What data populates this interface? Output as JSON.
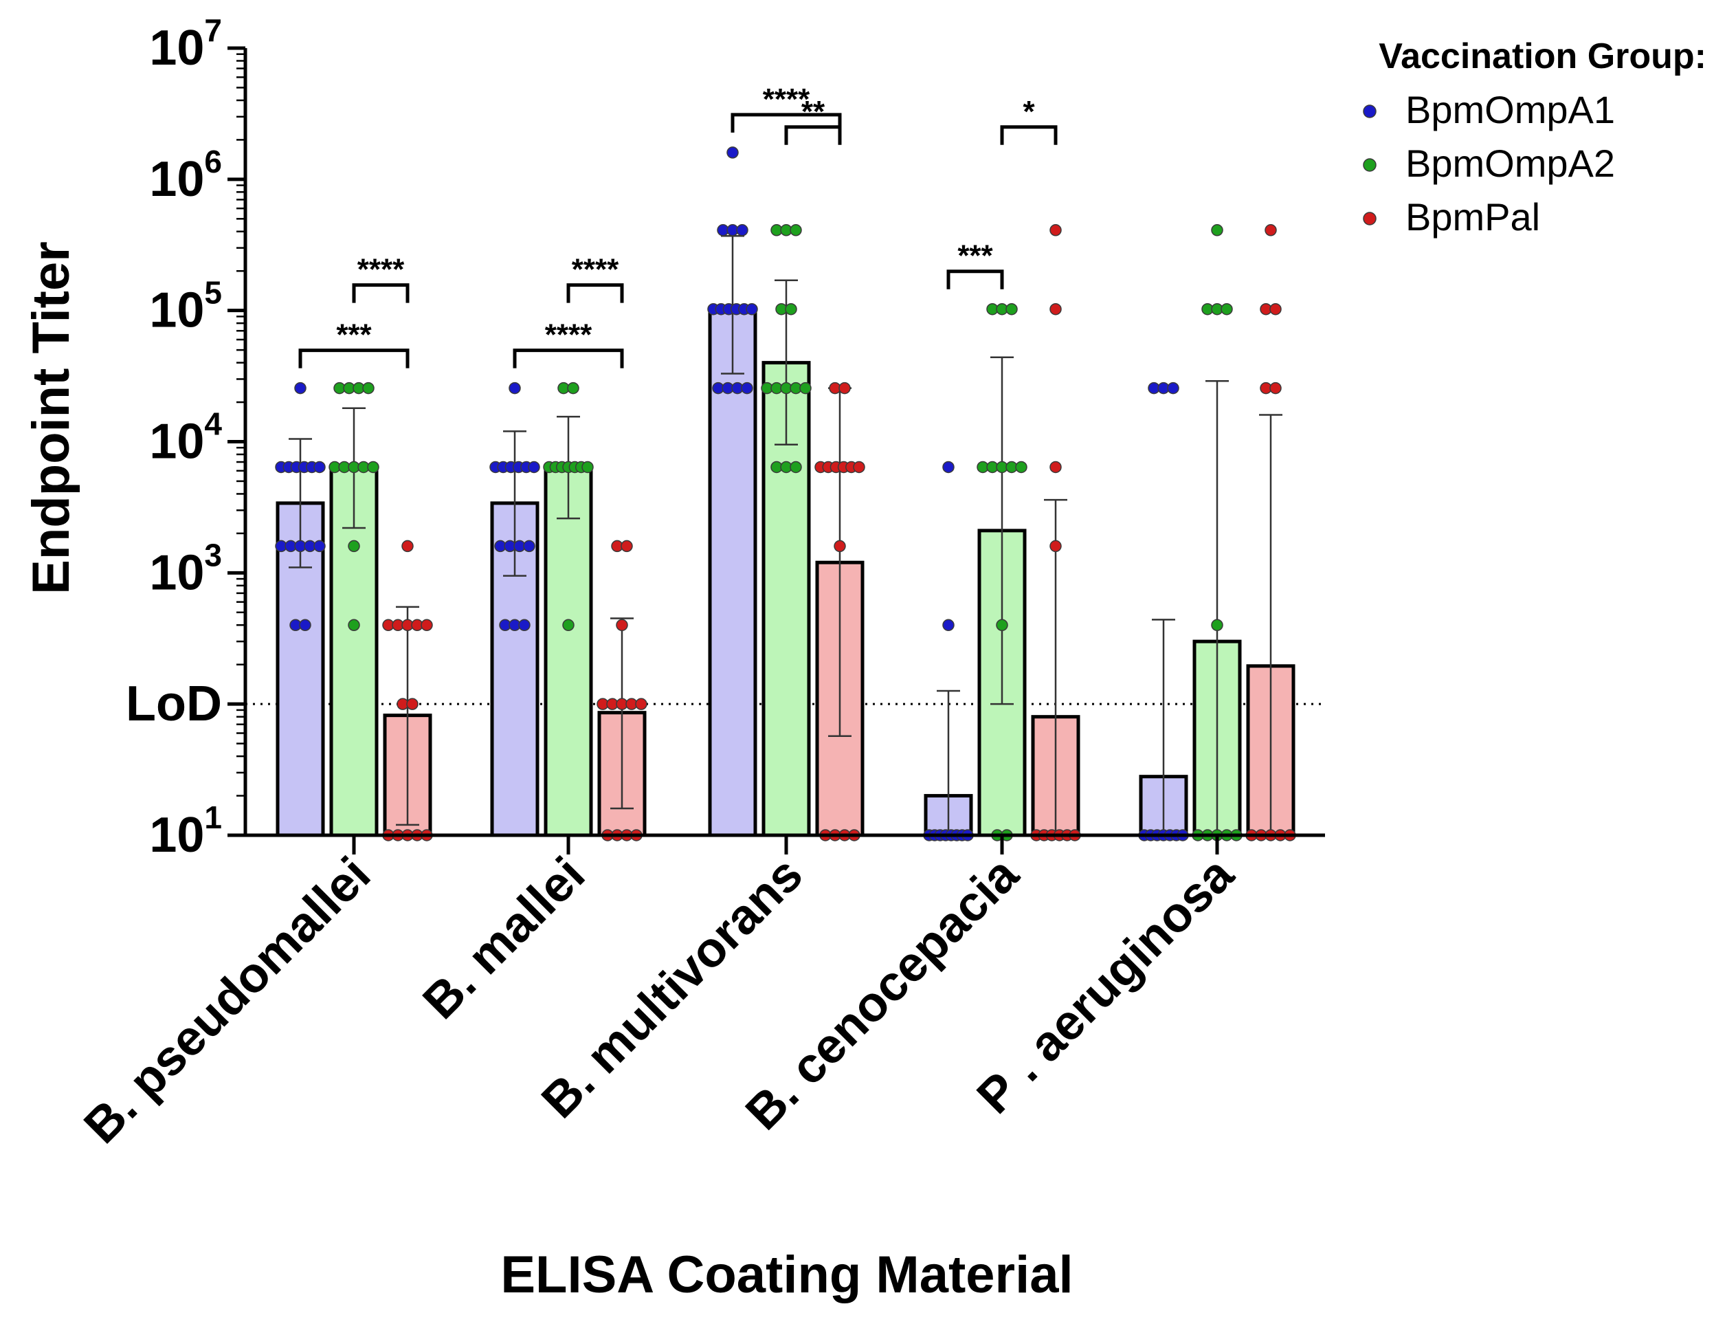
{
  "chart_data": {
    "type": "bar",
    "yscale": "log",
    "ylabel": "Endpoint Titer",
    "xlabel": "ELISA Coating Material",
    "ylim": [
      10,
      10000000
    ],
    "yticks": [
      {
        "value": 10,
        "base": "10",
        "exp": "1"
      },
      {
        "value": 100,
        "label": "LoD"
      },
      {
        "value": 1000,
        "base": "10",
        "exp": "3"
      },
      {
        "value": 10000,
        "base": "10",
        "exp": "4"
      },
      {
        "value": 100000,
        "base": "10",
        "exp": "5"
      },
      {
        "value": 1000000,
        "base": "10",
        "exp": "6"
      },
      {
        "value": 10000000,
        "base": "10",
        "exp": "7"
      }
    ],
    "lod": 100,
    "categories": [
      "B. pseudomallei",
      "B. mallei",
      "B. multivorans",
      "B. cenocepacia",
      "P . aeruginosa"
    ],
    "legend_title": "Vaccination Group:",
    "series": [
      {
        "name": "BpmOmpA1",
        "bar_color": "#c6c3f5",
        "dot_color": "#1a1ac8",
        "values": [
          3400,
          3400,
          100000,
          20,
          28
        ],
        "error_low": [
          1100,
          950,
          33000,
          10,
          10
        ],
        "error_high": [
          10500,
          12000,
          370000,
          126,
          440
        ],
        "points": [
          [
            25600,
            6400,
            6400,
            6400,
            6400,
            6400,
            6400,
            1600,
            1600,
            1600,
            1600,
            1600,
            400,
            400
          ],
          [
            25600,
            6400,
            6400,
            6400,
            6400,
            6400,
            6400,
            1600,
            1600,
            1600,
            1600,
            400,
            400,
            400
          ],
          [
            1600000,
            409600,
            409600,
            409600,
            102400,
            102400,
            102400,
            102400,
            102400,
            102400,
            25600,
            25600,
            25600,
            25600
          ],
          [
            6400,
            400,
            10,
            10,
            10,
            10,
            10,
            10,
            10,
            10
          ],
          [
            25600,
            25600,
            25600,
            10,
            10,
            10,
            10,
            10,
            10,
            10
          ]
        ]
      },
      {
        "name": "BpmOmpA2",
        "bar_color": "#bdf5b8",
        "dot_color": "#1ea01e",
        "values": [
          6300,
          6300,
          40000,
          2100,
          300
        ],
        "error_low": [
          2200,
          2600,
          9500,
          100,
          10
        ],
        "error_high": [
          18000,
          15500,
          170000,
          44000,
          29000
        ],
        "points": [
          [
            25600,
            25600,
            25600,
            25600,
            6400,
            6400,
            6400,
            6400,
            6400,
            1600,
            400
          ],
          [
            25600,
            25600,
            6400,
            6400,
            6400,
            6400,
            6400,
            6400,
            6400,
            400
          ],
          [
            409600,
            409600,
            409600,
            102400,
            102400,
            25600,
            25600,
            25600,
            25600,
            25600,
            6400,
            6400,
            6400
          ],
          [
            102400,
            102400,
            102400,
            6400,
            6400,
            6400,
            6400,
            6400,
            400,
            10,
            10
          ],
          [
            409600,
            102400,
            102400,
            102400,
            400,
            10,
            10,
            10,
            10,
            10
          ]
        ]
      },
      {
        "name": "BpmPal",
        "bar_color": "#f5b3b3",
        "dot_color": "#d01c1c",
        "values": [
          82,
          86,
          1200,
          80,
          195
        ],
        "error_low": [
          12,
          16,
          57,
          10,
          10
        ],
        "error_high": [
          550,
          450,
          25600,
          3600,
          16000
        ],
        "points": [
          [
            1600,
            400,
            400,
            400,
            400,
            400,
            100,
            100,
            10,
            10,
            10,
            10,
            10
          ],
          [
            1600,
            1600,
            400,
            100,
            100,
            100,
            100,
            100,
            10,
            10,
            10,
            10
          ],
          [
            25600,
            25600,
            6400,
            6400,
            6400,
            6400,
            6400,
            6400,
            1600,
            10,
            10,
            10,
            10
          ],
          [
            409600,
            102400,
            6400,
            1600,
            10,
            10,
            10,
            10,
            10,
            10
          ],
          [
            409600,
            102400,
            102400,
            25600,
            25600,
            10,
            10,
            10,
            10,
            10
          ]
        ]
      }
    ],
    "significance": [
      {
        "category": 0,
        "from": 0,
        "to": 2,
        "label": "***"
      },
      {
        "category": 0,
        "from": 1,
        "to": 2,
        "label": "****"
      },
      {
        "category": 1,
        "from": 0,
        "to": 2,
        "label": "****"
      },
      {
        "category": 1,
        "from": 1,
        "to": 2,
        "label": "****"
      },
      {
        "category": 2,
        "from": 0,
        "to": 2,
        "label": "****"
      },
      {
        "category": 2,
        "from": 1,
        "to": 2,
        "label": "**"
      },
      {
        "category": 3,
        "from": 0,
        "to": 1,
        "label": "***"
      },
      {
        "category": 3,
        "from": 1,
        "to": 2,
        "label": "*"
      }
    ]
  }
}
